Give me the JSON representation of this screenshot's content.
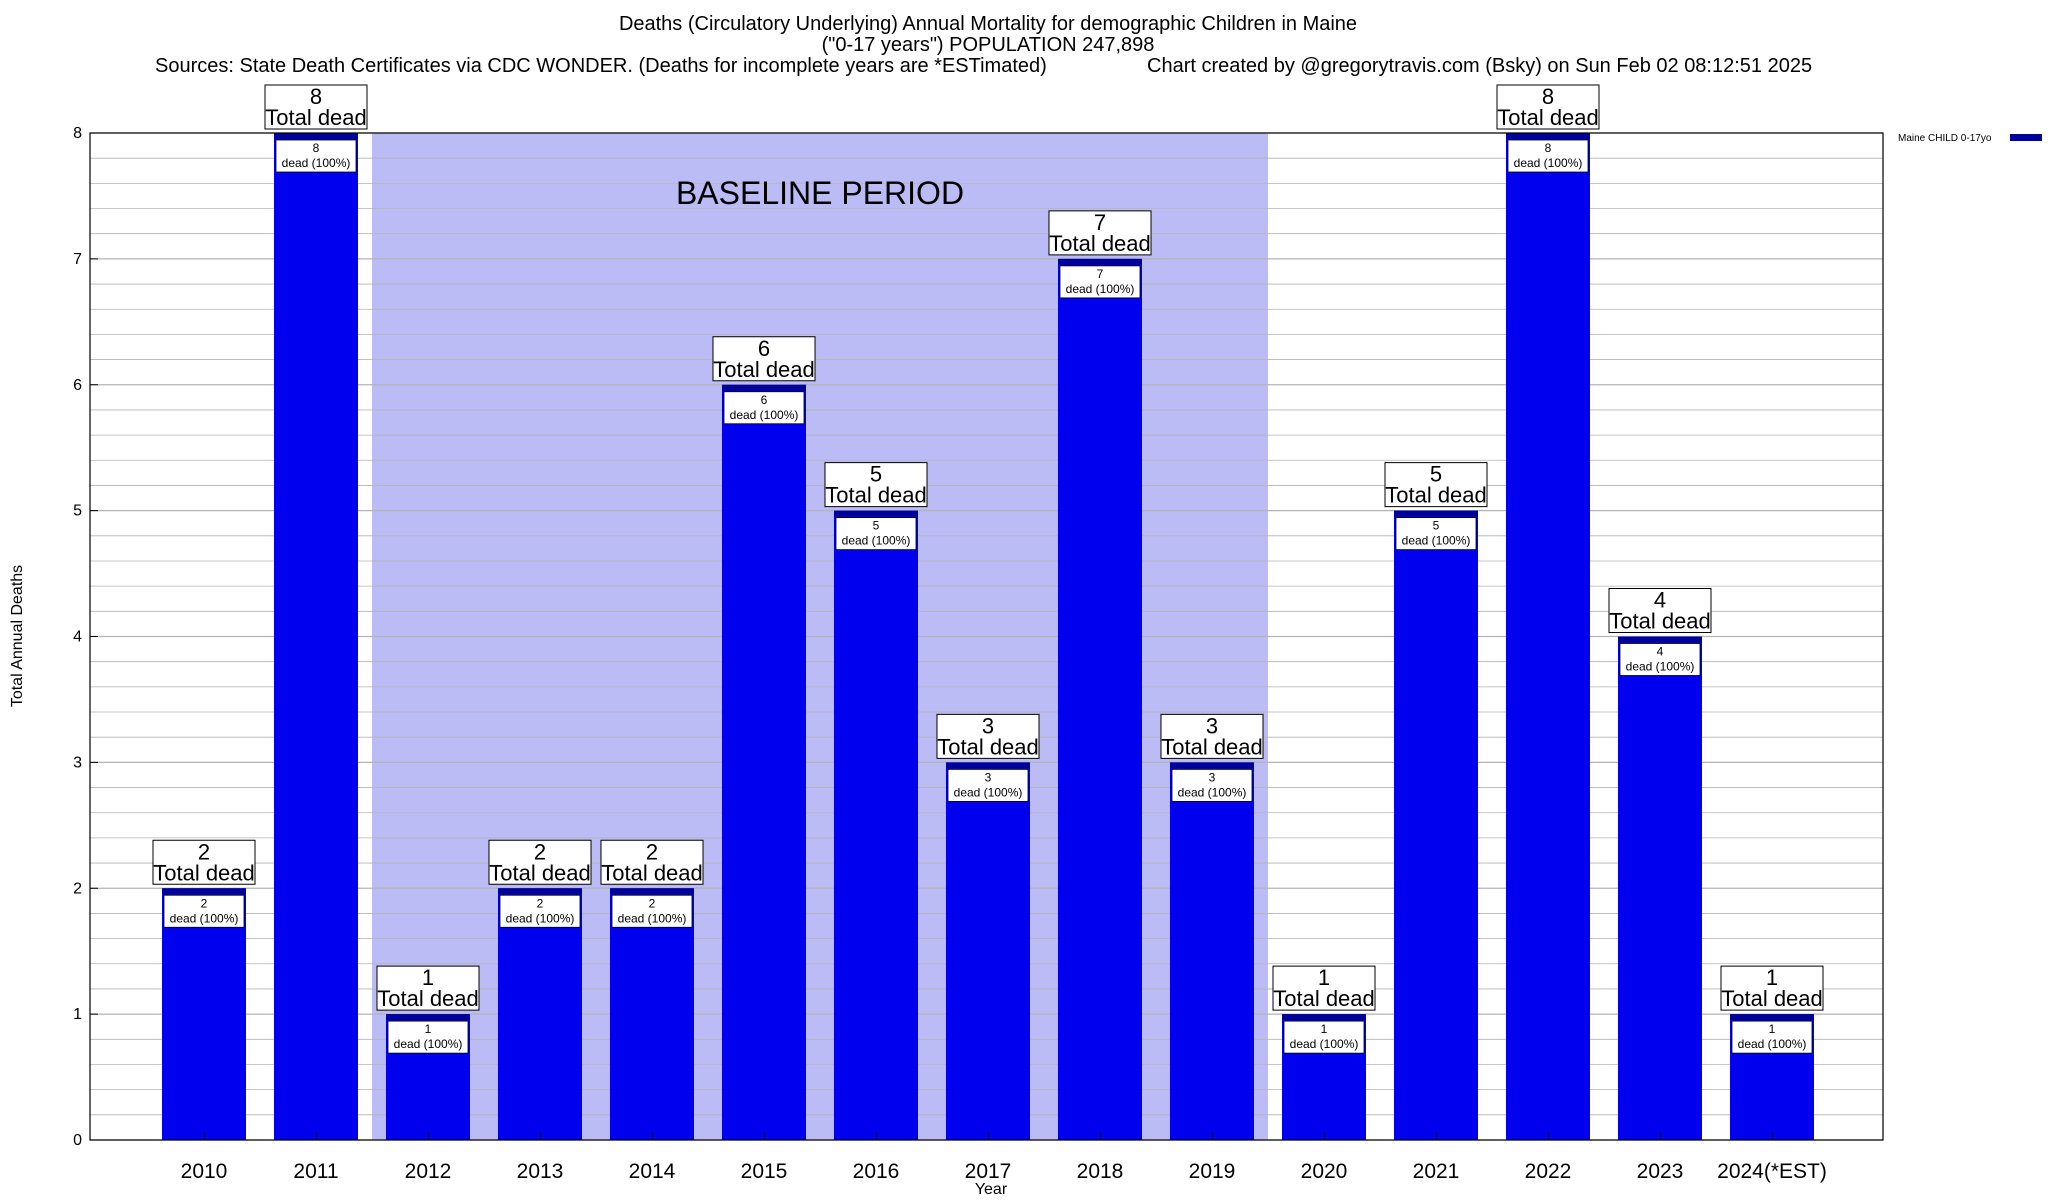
{
  "title": {
    "line1": "Deaths (Circulatory Underlying) Annual Mortality for demographic Children in Maine",
    "line2": "(\"0-17 years\") POPULATION 247,898",
    "sources": "Sources: State Death Certificates via CDC WONDER. (Deaths for incomplete years are *ESTimated)",
    "credit": "Chart created by @gregorytravis.com (Bsky) on Sun Feb 02 08:12:51 2025"
  },
  "chart_data": {
    "type": "bar",
    "categories": [
      "2010",
      "2011",
      "2012",
      "2013",
      "2014",
      "2015",
      "2016",
      "2017",
      "2018",
      "2019",
      "2020",
      "2021",
      "2022",
      "2023",
      "2024(*EST)"
    ],
    "series": [
      {
        "name": "Maine CHILD 0-17yo",
        "values": [
          2,
          8,
          1,
          2,
          2,
          6,
          5,
          3,
          7,
          3,
          1,
          5,
          8,
          4,
          1
        ]
      }
    ],
    "total_label": "Total dead",
    "inner_label": "dead (100%)",
    "xlabel": "Year",
    "ylabel": "Total Annual Deaths",
    "ylim": [
      0,
      8
    ],
    "yticks": [
      0,
      1,
      2,
      3,
      4,
      5,
      6,
      7,
      8
    ],
    "grid": true,
    "legend": "top-right",
    "annotation": {
      "text": "BASELINE PERIOD",
      "from_category": "2012",
      "to_category": "2019"
    },
    "colors": {
      "bar": "#0000ee",
      "bar_top": "#00009a",
      "baseline_shade": "#bbbbf6",
      "grid": "#b4b4b4"
    }
  }
}
